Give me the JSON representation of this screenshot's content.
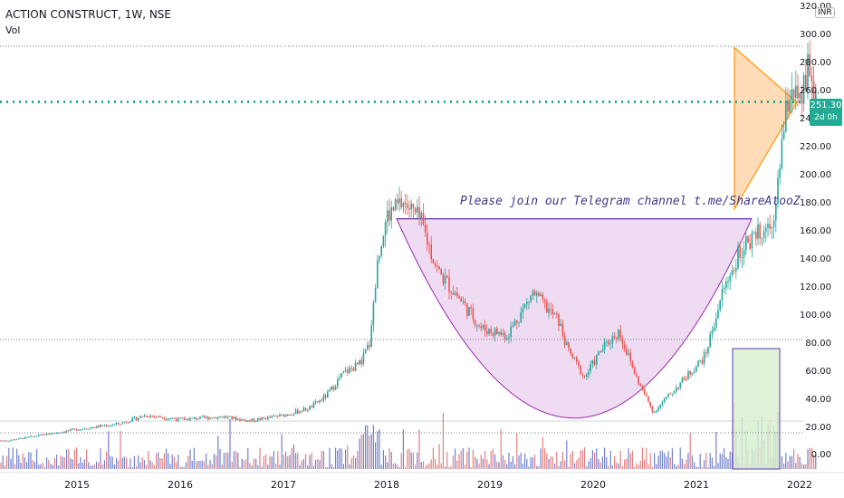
{
  "header": {
    "symbol_line": "ACTION CONSTRUCT, 1W, NSE",
    "indicator_label": "Vol"
  },
  "currency_badge": "INR",
  "price_tag": {
    "price": "251.30",
    "countdown": "2d 0h"
  },
  "annotation": "Please join our Telegram channel t.me/ShareAtooZ",
  "colors": {
    "up": "#26a69a",
    "down": "#ef5350",
    "vol_up": "#5b6bc6",
    "vol_down": "#e06a6a",
    "cup_fill": "#e1bee7",
    "cup_stroke": "#9c27b0",
    "triangle_fill": "#ffcc99",
    "triangle_stroke": "#ff9800",
    "box_fill": "#d8f0d0",
    "box_stroke": "#5e35b1",
    "last_price_line": "#22ab94",
    "text": "#131722"
  },
  "chart_data": {
    "type": "candlestick",
    "title": "ACTION CONSTRUCT, 1W, NSE",
    "y_axis": {
      "label": "INR",
      "ticks": [
        0,
        20,
        40,
        60,
        80,
        100,
        120,
        140,
        160,
        180,
        200,
        220,
        240,
        260,
        280,
        300,
        320
      ],
      "tick_labels": [
        "0.00",
        "20.00",
        "40.00",
        "60.00",
        "80.00",
        "100.00",
        "120.00",
        "140.00",
        "160.00",
        "180.00",
        "200.00",
        "220.00",
        "240.00",
        "260.00",
        "280.00",
        "300.00",
        "320.00"
      ]
    },
    "x_axis": {
      "ticks": [
        "2015",
        "2016",
        "2017",
        "2018",
        "2019",
        "2020",
        "2021",
        "2022"
      ]
    },
    "last_price": 251.3,
    "reference_levels": [
      291,
      82,
      168
    ],
    "price_path": [
      [
        "2014-05",
        10
      ],
      [
        "2014-09",
        14
      ],
      [
        "2015-01",
        18
      ],
      [
        "2015-06",
        22
      ],
      [
        "2015-09",
        28
      ],
      [
        "2016-01",
        25
      ],
      [
        "2016-06",
        27
      ],
      [
        "2016-09",
        24
      ],
      [
        "2017-01",
        28
      ],
      [
        "2017-04",
        33
      ],
      [
        "2017-06",
        42
      ],
      [
        "2017-08",
        58
      ],
      [
        "2017-10",
        65
      ],
      [
        "2017-11",
        80
      ],
      [
        "2017-12",
        140
      ],
      [
        "2018-01",
        170
      ],
      [
        "2018-03",
        180
      ],
      [
        "2018-05",
        165
      ],
      [
        "2018-07",
        130
      ],
      [
        "2018-09",
        115
      ],
      [
        "2018-12",
        90
      ],
      [
        "2019-03",
        85
      ],
      [
        "2019-06",
        115
      ],
      [
        "2019-09",
        95
      ],
      [
        "2019-10",
        75
      ],
      [
        "2019-12",
        55
      ],
      [
        "2020-02",
        75
      ],
      [
        "2020-04",
        88
      ],
      [
        "2020-06",
        55
      ],
      [
        "2020-08",
        30
      ],
      [
        "2020-11",
        50
      ],
      [
        "2021-02",
        70
      ],
      [
        "2021-04",
        115
      ],
      [
        "2021-06",
        145
      ],
      [
        "2021-08",
        160
      ],
      [
        "2021-10",
        168
      ],
      [
        "2021-11",
        225
      ],
      [
        "2021-12",
        265
      ],
      [
        "2022-01",
        245
      ],
      [
        "2022-02",
        275
      ],
      [
        "2022-03",
        251.3
      ]
    ],
    "patterns": [
      {
        "name": "cup",
        "top_level": 168,
        "bottom_level": 26
      },
      {
        "name": "symmetrical-triangle",
        "top": 290,
        "apex": 251,
        "bottom": 175
      }
    ]
  }
}
